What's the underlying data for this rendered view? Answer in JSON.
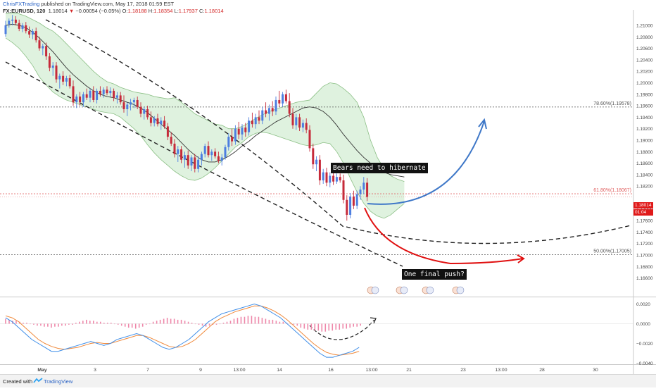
{
  "header": {
    "author": "ChrisFXTrading",
    "published_text": "published on TradingView.com, May 17, 2018 01:59 EST",
    "symbol": "FX:EURUSD, 120",
    "last": "1.18014",
    "change": "−0.00054 (−0.05%)",
    "ohlc": {
      "open": "1.18188",
      "high": "1.18354",
      "low": "1.17937",
      "close": "1.18014"
    }
  },
  "colors": {
    "up": "#4d7ee0",
    "down": "#c62a3a",
    "band_fill": "#dff2df",
    "band_line": "#8bbf85",
    "basis": "#333333",
    "hist": "#ee88aa",
    "macd_line": "#3f8ee8",
    "signal_line": "#f08a3c",
    "blue_arrow": "#3f78c8",
    "red_arrow": "#e01010",
    "fib_line_dark": "#555555",
    "fib_line_red": "#e06060",
    "price_badge": "#e01919"
  },
  "annotations": {
    "bears": "Bears need to hibernate",
    "push": "One final push?"
  },
  "price_badge": {
    "price": "1.18014",
    "countdown": "01:04"
  },
  "fib_labels": {
    "f786": "78.60%(1.19578)",
    "f618": "61.80%(1.18067)",
    "f500": "50.00%(1.17005)"
  },
  "footer": {
    "created_with": "Created with",
    "brand": "TradingView",
    "logo_icon": "tradingview-logo-icon"
  },
  "event_icons": [
    {
      "name": "us-flag-event-icon"
    },
    {
      "name": "eu-flag-event-icon"
    },
    {
      "name": "us-flag-event-icon"
    },
    {
      "name": "eu-flag-event-icon"
    }
  ],
  "chart_data": [
    {
      "type": "candlestick",
      "symbol": "FX:EURUSD",
      "interval": "120",
      "overlays": [
        "Bollinger Bands",
        "Fibonacci retracement 50% / 61.8% / 78.6%",
        "dashed curved trend lines",
        "projected path arrows"
      ],
      "x_ticks": [
        "May",
        "3",
        "7",
        "9",
        "13:00",
        "14",
        "16",
        "13:00",
        "21",
        "23",
        "13:00",
        "28",
        "30"
      ],
      "y_ticks": [
        "1.21000",
        "1.20800",
        "1.20600",
        "1.20400",
        "1.20200",
        "1.20000",
        "1.19800",
        "1.19600",
        "1.19400",
        "1.19200",
        "1.19000",
        "1.18800",
        "1.18600",
        "1.18400",
        "1.18200",
        "1.17800",
        "1.17600",
        "1.17400",
        "1.17200",
        "1.17000",
        "1.16800",
        "1.16600"
      ],
      "ylim": [
        1.1655,
        1.2127
      ],
      "fibonacci": [
        {
          "level": "78.60%",
          "price": 1.19578
        },
        {
          "level": "61.80%",
          "price": 1.18067
        },
        {
          "level": "50.00%",
          "price": 1.17005
        }
      ],
      "last_price": 1.18014,
      "candles": [
        [
          1.2085,
          1.2108,
          1.208,
          1.21
        ],
        [
          1.2102,
          1.2112,
          1.2096,
          1.2108
        ],
        [
          1.2108,
          1.2118,
          1.21,
          1.211
        ],
        [
          1.211,
          1.2116,
          1.21,
          1.2104
        ],
        [
          1.2104,
          1.211,
          1.209,
          1.2094
        ],
        [
          1.2094,
          1.2104,
          1.2088,
          1.21
        ],
        [
          1.21,
          1.2106,
          1.2086,
          1.209
        ],
        [
          1.209,
          1.2098,
          1.2078,
          1.2084
        ],
        [
          1.2084,
          1.2094,
          1.2076,
          1.209
        ],
        [
          1.209,
          1.2096,
          1.207,
          1.2074
        ],
        [
          1.2074,
          1.208,
          1.2056,
          1.206
        ],
        [
          1.206,
          1.2068,
          1.2048,
          1.2064
        ],
        [
          1.2064,
          1.207,
          1.204,
          1.2046
        ],
        [
          1.2046,
          1.2052,
          1.202,
          1.2026
        ],
        [
          1.2026,
          1.2036,
          1.2012,
          1.203
        ],
        [
          1.203,
          1.2036,
          1.2,
          1.2006
        ],
        [
          1.2006,
          1.2016,
          1.199,
          1.2012
        ],
        [
          1.2012,
          1.202,
          1.1996,
          1.2002
        ],
        [
          1.2002,
          1.2012,
          1.1994,
          1.2008
        ],
        [
          1.2008,
          1.2014,
          1.199,
          1.1994
        ],
        [
          1.1994,
          1.2004,
          1.196,
          1.1966
        ],
        [
          1.1966,
          1.198,
          1.1956,
          1.1976
        ],
        [
          1.1976,
          1.1984,
          1.196,
          1.1966
        ],
        [
          1.1966,
          1.1984,
          1.1958,
          1.198
        ],
        [
          1.198,
          1.199,
          1.197,
          1.1974
        ],
        [
          1.1974,
          1.199,
          1.1966,
          1.1986
        ],
        [
          1.1986,
          1.1994,
          1.1966,
          1.197
        ],
        [
          1.197,
          1.199,
          1.1964,
          1.1986
        ],
        [
          1.1986,
          1.1994,
          1.1976,
          1.198
        ],
        [
          1.198,
          1.1992,
          1.1974,
          1.1988
        ],
        [
          1.1988,
          1.1994,
          1.1978,
          1.1982
        ],
        [
          1.1982,
          1.1992,
          1.1976,
          1.1986
        ],
        [
          1.1986,
          1.199,
          1.1968,
          1.1974
        ],
        [
          1.1974,
          1.1984,
          1.1964,
          1.1978
        ],
        [
          1.1978,
          1.1984,
          1.1962,
          1.1966
        ],
        [
          1.1966,
          1.1978,
          1.1948,
          1.1954
        ],
        [
          1.1954,
          1.1966,
          1.1942,
          1.1962
        ],
        [
          1.1962,
          1.1972,
          1.1952,
          1.1966
        ],
        [
          1.1966,
          1.1974,
          1.1956,
          1.197
        ],
        [
          1.197,
          1.1976,
          1.1954,
          1.1958
        ],
        [
          1.1958,
          1.1966,
          1.194,
          1.1946
        ],
        [
          1.1946,
          1.1958,
          1.1936,
          1.1954
        ],
        [
          1.1954,
          1.196,
          1.1936,
          1.194
        ],
        [
          1.194,
          1.195,
          1.1924,
          1.193
        ],
        [
          1.193,
          1.1942,
          1.1924,
          1.1938
        ],
        [
          1.1938,
          1.1946,
          1.1924,
          1.1928
        ],
        [
          1.1928,
          1.194,
          1.1918,
          1.1934
        ],
        [
          1.1934,
          1.1942,
          1.192,
          1.1924
        ],
        [
          1.1924,
          1.193,
          1.19,
          1.1906
        ],
        [
          1.1906,
          1.1914,
          1.189,
          1.1894
        ],
        [
          1.1894,
          1.1902,
          1.187,
          1.1876
        ],
        [
          1.1876,
          1.189,
          1.1862,
          1.1884
        ],
        [
          1.1884,
          1.189,
          1.186,
          1.1866
        ],
        [
          1.1866,
          1.188,
          1.1852,
          1.1874
        ],
        [
          1.1874,
          1.1882,
          1.185,
          1.1856
        ],
        [
          1.1856,
          1.1874,
          1.1846,
          1.187
        ],
        [
          1.187,
          1.1876,
          1.1844,
          1.185
        ],
        [
          1.185,
          1.1872,
          1.1844,
          1.1866
        ],
        [
          1.1866,
          1.188,
          1.1856,
          1.1876
        ],
        [
          1.1876,
          1.1894,
          1.187,
          1.189
        ],
        [
          1.189,
          1.1898,
          1.187,
          1.1874
        ],
        [
          1.1874,
          1.1884,
          1.1864,
          1.188
        ],
        [
          1.188,
          1.1886,
          1.1868,
          1.1872
        ],
        [
          1.1872,
          1.188,
          1.186,
          1.1864
        ],
        [
          1.1864,
          1.1876,
          1.1856,
          1.187
        ],
        [
          1.187,
          1.1892,
          1.1866,
          1.1888
        ],
        [
          1.1888,
          1.1912,
          1.1882,
          1.1906
        ],
        [
          1.1906,
          1.192,
          1.189,
          1.1898
        ],
        [
          1.1898,
          1.1926,
          1.1892,
          1.192
        ],
        [
          1.192,
          1.1932,
          1.1902,
          1.191
        ],
        [
          1.191,
          1.1928,
          1.19,
          1.1922
        ],
        [
          1.1922,
          1.193,
          1.1906,
          1.1914
        ],
        [
          1.1914,
          1.194,
          1.1908,
          1.1934
        ],
        [
          1.1934,
          1.1948,
          1.1922,
          1.1928
        ],
        [
          1.1928,
          1.1946,
          1.192,
          1.194
        ],
        [
          1.194,
          1.1952,
          1.1928,
          1.1934
        ],
        [
          1.1934,
          1.1958,
          1.1928,
          1.1952
        ],
        [
          1.1952,
          1.1966,
          1.194,
          1.1946
        ],
        [
          1.1946,
          1.1962,
          1.1934,
          1.1956
        ],
        [
          1.1956,
          1.1968,
          1.1942,
          1.195
        ],
        [
          1.195,
          1.1976,
          1.1944,
          1.197
        ],
        [
          1.197,
          1.1986,
          1.1958,
          1.1964
        ],
        [
          1.1964,
          1.1984,
          1.1958,
          1.198
        ],
        [
          1.198,
          1.1988,
          1.1964,
          1.1968
        ],
        [
          1.1968,
          1.1982,
          1.194,
          1.1946
        ],
        [
          1.1946,
          1.1956,
          1.192,
          1.1926
        ],
        [
          1.1926,
          1.1946,
          1.1918,
          1.194
        ],
        [
          1.194,
          1.1946,
          1.1916,
          1.1922
        ],
        [
          1.1922,
          1.1936,
          1.1914,
          1.193
        ],
        [
          1.193,
          1.1938,
          1.1912,
          1.1918
        ],
        [
          1.1918,
          1.1926,
          1.188,
          1.1886
        ],
        [
          1.1886,
          1.1894,
          1.185,
          1.1858
        ],
        [
          1.1858,
          1.1872,
          1.1846,
          1.1866
        ],
        [
          1.1866,
          1.1874,
          1.1822,
          1.183
        ],
        [
          1.183,
          1.185,
          1.1824,
          1.1844
        ],
        [
          1.1844,
          1.1852,
          1.182,
          1.1826
        ],
        [
          1.1826,
          1.1844,
          1.1818,
          1.1838
        ],
        [
          1.1838,
          1.1846,
          1.1822,
          1.1828
        ],
        [
          1.1828,
          1.1842,
          1.1824,
          1.1836
        ],
        [
          1.1836,
          1.1842,
          1.1826,
          1.183
        ],
        [
          1.183,
          1.184,
          1.179,
          1.1796
        ],
        [
          1.1796,
          1.1804,
          1.176,
          1.177
        ],
        [
          1.177,
          1.1808,
          1.1764,
          1.1802
        ],
        [
          1.1802,
          1.1812,
          1.178,
          1.1786
        ],
        [
          1.1786,
          1.1812,
          1.178,
          1.1806
        ],
        [
          1.1806,
          1.182,
          1.1796,
          1.1814
        ],
        [
          1.1814,
          1.1836,
          1.1806,
          1.1826
        ],
        [
          1.1826,
          1.1834,
          1.1794,
          1.1801
        ]
      ],
      "bollinger": {
        "upper": [
          1.212,
          1.2122,
          1.212,
          1.2116,
          1.211,
          1.2104,
          1.2096,
          1.209,
          1.208,
          1.2068,
          1.2056,
          1.2044,
          1.2032,
          1.202,
          1.201,
          1.2002,
          1.1998,
          1.1992,
          1.1988,
          1.1984,
          1.1982,
          1.198,
          1.1976,
          1.1974,
          1.1972,
          1.1974,
          1.1966,
          1.1956,
          1.1946,
          1.194,
          1.1934,
          1.1928,
          1.1926,
          1.192,
          1.192,
          1.1924,
          1.193,
          1.1938,
          1.1944,
          1.195,
          1.1954,
          1.1958,
          1.1962,
          1.1966,
          1.1968,
          1.197,
          1.1982,
          1.1994,
          1.2,
          1.1998,
          1.199,
          1.198,
          1.1966,
          1.194,
          1.19,
          1.187,
          1.185,
          1.1838,
          1.1832,
          1.1828
        ],
        "basis": [
          1.21,
          1.2102,
          1.21,
          1.2096,
          1.2088,
          1.2078,
          1.2066,
          1.2054,
          1.204,
          1.2026,
          1.2014,
          1.2004,
          1.1994,
          1.1986,
          1.198,
          1.1976,
          1.1974,
          1.197,
          1.1966,
          1.1962,
          1.1956,
          1.1948,
          1.1938,
          1.1928,
          1.1918,
          1.1908,
          1.1896,
          1.1884,
          1.1874,
          1.1866,
          1.1862,
          1.1862,
          1.1866,
          1.1872,
          1.188,
          1.189,
          1.1898,
          1.1908,
          1.1916,
          1.1924,
          1.1932,
          1.1938,
          1.1944,
          1.195,
          1.1956,
          1.1958,
          1.1956,
          1.195,
          1.194,
          1.1926,
          1.191,
          1.1896,
          1.1882,
          1.187,
          1.186,
          1.1852,
          1.1844,
          1.184,
          1.1838,
          1.1836
        ],
        "lower": [
          1.2078,
          1.207,
          1.206,
          1.2046,
          1.203,
          1.201,
          1.1996,
          1.1984,
          1.1976,
          1.197,
          1.1966,
          1.1962,
          1.1958,
          1.1954,
          1.195,
          1.1948,
          1.1946,
          1.194,
          1.193,
          1.192,
          1.1908,
          1.1892,
          1.1878,
          1.1866,
          1.1856,
          1.1846,
          1.1838,
          1.1832,
          1.183,
          1.1834,
          1.1842,
          1.1852,
          1.1864,
          1.1876,
          1.1888,
          1.1896,
          1.1906,
          1.1912,
          1.1914,
          1.1912,
          1.1908,
          1.1904,
          1.19,
          1.1896,
          1.1892,
          1.189,
          1.1892,
          1.1896,
          1.1894,
          1.188,
          1.186,
          1.1834,
          1.181,
          1.179,
          1.1776,
          1.1768,
          1.1764,
          1.177,
          1.178,
          1.179
        ]
      }
    },
    {
      "type": "macd",
      "y_ticks": [
        "0.0020",
        "0.0000",
        "−0.0020",
        "−0.0040"
      ],
      "ylim": [
        -0.0042,
        0.0026
      ],
      "histogram": [
        0.0005,
        0.0004,
        0.0003,
        0.0003,
        0.0002,
        0.0001,
        0.0001,
        0.0,
        -0.0001,
        -0.0002,
        -0.0002,
        -0.0003,
        -0.0003,
        -0.0004,
        -0.0003,
        -0.0003,
        -0.0002,
        -0.0002,
        -0.0001,
        -0.0001,
        0.0001,
        0.0002,
        0.0003,
        0.0004,
        0.0003,
        0.0003,
        0.0002,
        0.0002,
        0.0001,
        0.0001,
        0.0001,
        0.0,
        -0.0001,
        -0.0002,
        -0.0003,
        -0.0004,
        -0.0004,
        -0.0005,
        -0.0004,
        -0.0003,
        -0.0001,
        0.0,
        0.0002,
        0.0003,
        0.0004,
        0.0005,
        0.0006,
        0.0005,
        0.0005,
        0.0004,
        0.0004,
        0.0003,
        0.0002,
        0.0001,
        0.0,
        -0.0001,
        -0.0002,
        -0.0003,
        -0.0002,
        -0.0001,
        -0.0001,
        0.0,
        0.0001,
        0.0002,
        0.0003,
        0.0005,
        0.0006,
        0.0007,
        0.0007,
        0.0008,
        0.0008,
        0.0007,
        0.0007,
        0.0006,
        0.0005,
        0.0004,
        0.0004,
        0.0003,
        0.0002,
        0.0002,
        0.0001,
        0.0,
        -0.0001,
        -0.0002,
        -0.0004,
        -0.0005,
        -0.0006,
        -0.0006,
        -0.0007,
        -0.0007,
        -0.0008,
        -0.0008,
        -0.0007,
        -0.0007,
        -0.0006,
        -0.0006,
        -0.0005,
        -0.0005,
        -0.0004,
        -0.0003,
        -0.0003,
        -0.0002
      ],
      "macd": [
        0.0006,
        0.0002,
        -0.0004,
        -0.001,
        -0.0016,
        -0.002,
        -0.0024,
        -0.0028,
        -0.0028,
        -0.0026,
        -0.0024,
        -0.0022,
        -0.002,
        -0.0018,
        -0.002,
        -0.0022,
        -0.002,
        -0.0016,
        -0.0014,
        -0.0012,
        -0.001,
        -0.0012,
        -0.0016,
        -0.002,
        -0.0024,
        -0.0026,
        -0.0024,
        -0.002,
        -0.0016,
        -0.001,
        -0.0004,
        0.0002,
        0.0006,
        0.001,
        0.0012,
        0.0014,
        0.0016,
        0.0018,
        0.002,
        0.0018,
        0.0014,
        0.001,
        0.0006,
        0.0,
        -0.0006,
        -0.0012,
        -0.0018,
        -0.0024,
        -0.003,
        -0.0034,
        -0.0034,
        -0.0032,
        -0.003,
        -0.0028,
        -0.0024
      ],
      "signal": [
        0.0008,
        0.0006,
        0.0002,
        -0.0004,
        -0.001,
        -0.0016,
        -0.002,
        -0.0023,
        -0.0025,
        -0.0026,
        -0.0025,
        -0.0024,
        -0.0022,
        -0.002,
        -0.0019,
        -0.002,
        -0.002,
        -0.0018,
        -0.0016,
        -0.0014,
        -0.0012,
        -0.0012,
        -0.0014,
        -0.0017,
        -0.002,
        -0.0023,
        -0.0024,
        -0.0023,
        -0.002,
        -0.0016,
        -0.001,
        -0.0004,
        0.0002,
        0.0006,
        0.0009,
        0.0012,
        0.0014,
        0.0016,
        0.0018,
        0.0018,
        0.0016,
        0.0013,
        0.0009,
        0.0004,
        -0.0002,
        -0.0008,
        -0.0014,
        -0.002,
        -0.0025,
        -0.0029,
        -0.0031,
        -0.0032,
        -0.0031,
        -0.003,
        -0.0028
      ]
    }
  ]
}
